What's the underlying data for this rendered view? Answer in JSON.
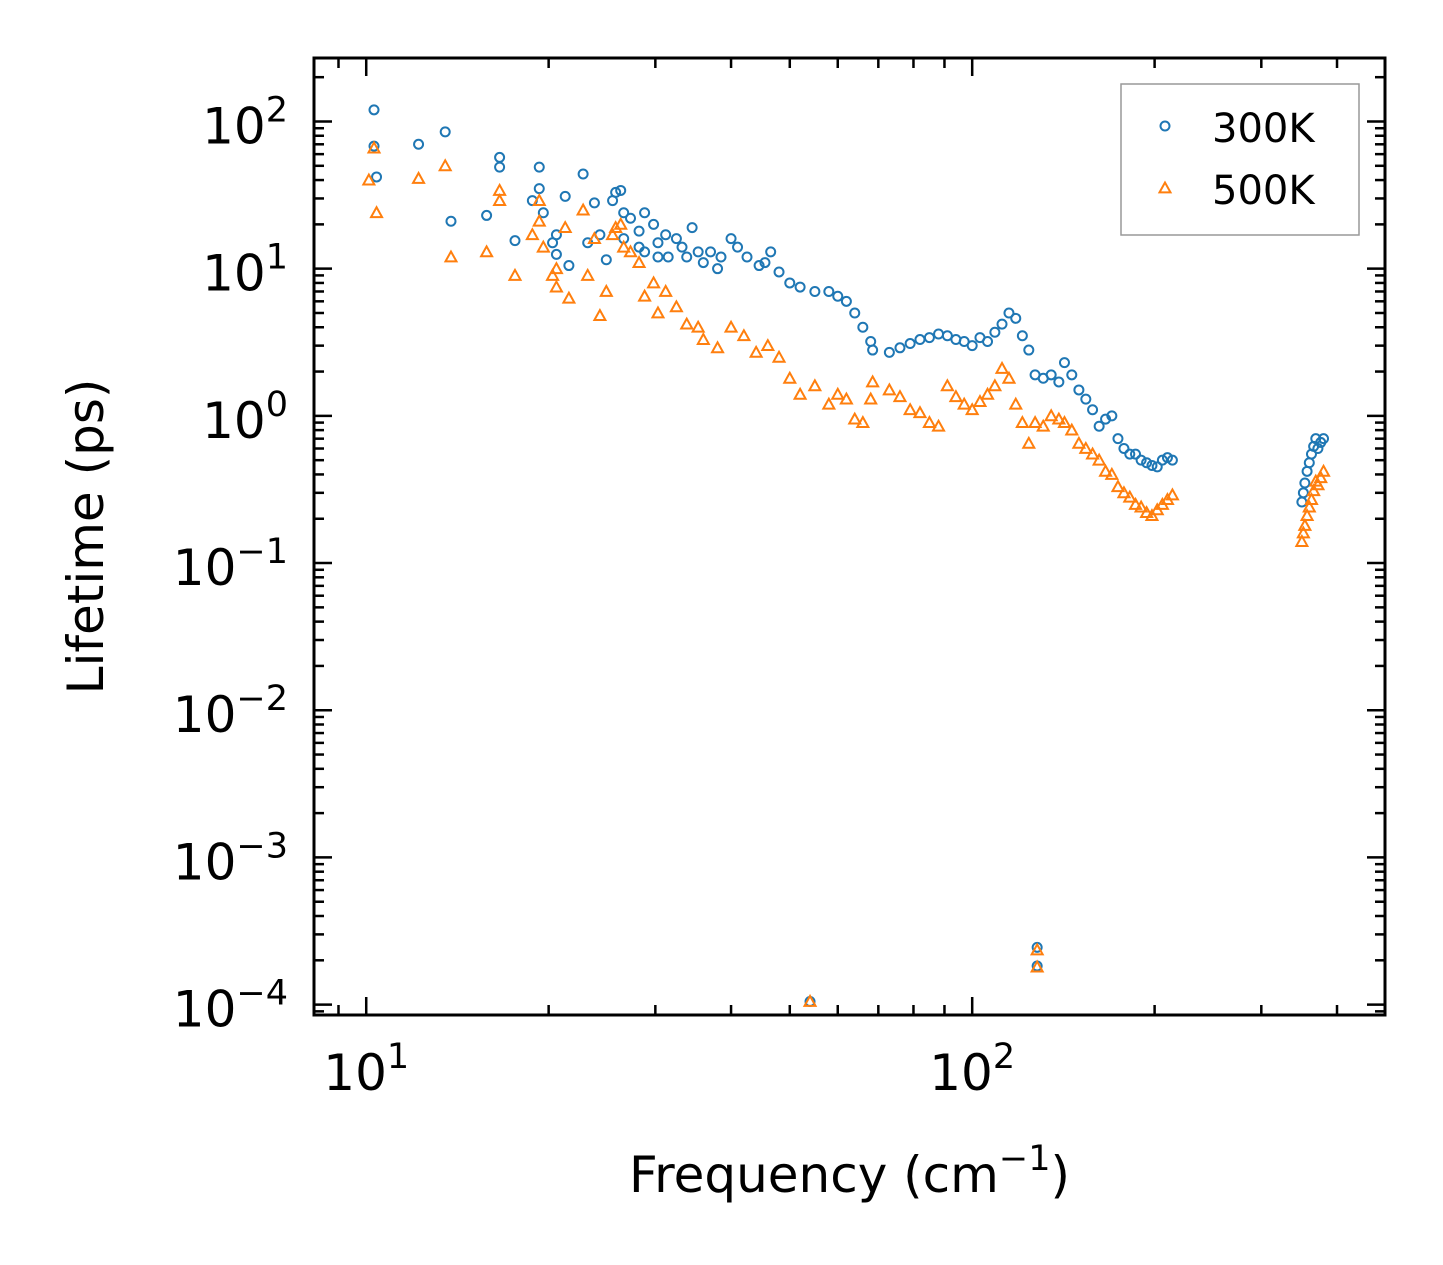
{
  "chart_data": {
    "type": "scatter",
    "title": "",
    "xlabel": "Frequency (cm",
    "xlabel_sup": "−1",
    "xlabel_suffix": ")",
    "ylabel": "Lifetime (ps)",
    "xscale": "log",
    "yscale": "log",
    "xlim": [
      8.2,
      480
    ],
    "ylim": [
      8.5e-05,
      270
    ],
    "legend_position": "top-right",
    "x_ticks": [
      {
        "base": "10",
        "exp": "1",
        "value": 10
      },
      {
        "base": "10",
        "exp": "2",
        "value": 100
      }
    ],
    "y_ticks": [
      {
        "base": "10",
        "exp": "2",
        "value": 100
      },
      {
        "base": "10",
        "exp": "1",
        "value": 10
      },
      {
        "base": "10",
        "exp": "0",
        "value": 1
      },
      {
        "base": "10",
        "exp": "−1",
        "value": 0.1
      },
      {
        "base": "10",
        "exp": "−2",
        "value": 0.01
      },
      {
        "base": "10",
        "exp": "−3",
        "value": 0.001
      },
      {
        "base": "10",
        "exp": "−4",
        "value": 0.0001
      }
    ],
    "series": [
      {
        "name": "300K",
        "marker": "circle",
        "color": "#1f77b4",
        "points": [
          [
            10.3,
            120
          ],
          [
            10.3,
            68
          ],
          [
            10.4,
            42
          ],
          [
            12.2,
            70
          ],
          [
            13.5,
            85
          ],
          [
            13.8,
            21
          ],
          [
            15.8,
            23
          ],
          [
            16.6,
            57
          ],
          [
            16.6,
            49
          ],
          [
            17.6,
            15.5
          ],
          [
            18.8,
            29
          ],
          [
            19.3,
            49
          ],
          [
            19.3,
            35
          ],
          [
            19.6,
            24
          ],
          [
            20.3,
            15
          ],
          [
            20.6,
            17
          ],
          [
            20.6,
            12.5
          ],
          [
            21.3,
            31
          ],
          [
            21.6,
            10.5
          ],
          [
            22.8,
            44
          ],
          [
            23.2,
            15
          ],
          [
            23.8,
            28
          ],
          [
            24.3,
            17
          ],
          [
            24.9,
            11.5
          ],
          [
            25.5,
            29
          ],
          [
            25.8,
            33
          ],
          [
            26.3,
            34
          ],
          [
            26.6,
            24
          ],
          [
            26.6,
            16
          ],
          [
            27.3,
            22
          ],
          [
            28.2,
            18
          ],
          [
            28.2,
            14
          ],
          [
            28.8,
            24
          ],
          [
            28.8,
            13
          ],
          [
            29.8,
            20
          ],
          [
            30.3,
            15
          ],
          [
            30.3,
            12
          ],
          [
            31.2,
            17
          ],
          [
            31.5,
            12
          ],
          [
            32.5,
            16
          ],
          [
            33.2,
            14
          ],
          [
            33.8,
            12
          ],
          [
            34.5,
            19
          ],
          [
            35.3,
            13
          ],
          [
            36,
            11
          ],
          [
            37,
            13
          ],
          [
            38,
            10
          ],
          [
            38.5,
            12
          ],
          [
            40,
            16
          ],
          [
            41,
            14
          ],
          [
            42.5,
            12
          ],
          [
            44.5,
            10.5
          ],
          [
            45.5,
            11
          ],
          [
            46.5,
            13
          ],
          [
            48,
            9.5
          ],
          [
            50,
            8
          ],
          [
            52,
            7.5
          ],
          [
            55,
            7
          ],
          [
            58,
            7
          ],
          [
            60,
            6.5
          ],
          [
            62,
            6
          ],
          [
            64,
            5
          ],
          [
            66,
            4
          ],
          [
            68,
            3.2
          ],
          [
            68.5,
            2.8
          ],
          [
            73,
            2.7
          ],
          [
            76,
            2.9
          ],
          [
            79,
            3.1
          ],
          [
            82,
            3.3
          ],
          [
            85,
            3.4
          ],
          [
            88,
            3.6
          ],
          [
            91,
            3.5
          ],
          [
            94,
            3.3
          ],
          [
            97,
            3.2
          ],
          [
            100,
            3
          ],
          [
            103,
            3.4
          ],
          [
            106,
            3.2
          ],
          [
            109,
            3.7
          ],
          [
            112,
            4.2
          ],
          [
            115,
            5
          ],
          [
            118,
            4.6
          ],
          [
            121,
            3.5
          ],
          [
            124,
            2.8
          ],
          [
            127,
            1.9
          ],
          [
            131,
            1.8
          ],
          [
            135,
            1.9
          ],
          [
            139,
            1.7
          ],
          [
            142,
            2.3
          ],
          [
            146,
            1.9
          ],
          [
            150,
            1.5
          ],
          [
            154,
            1.3
          ],
          [
            158,
            1.1
          ],
          [
            162,
            0.85
          ],
          [
            166,
            0.95
          ],
          [
            170,
            1
          ],
          [
            174,
            0.7
          ],
          [
            178,
            0.6
          ],
          [
            182,
            0.55
          ],
          [
            186,
            0.55
          ],
          [
            190,
            0.5
          ],
          [
            194,
            0.48
          ],
          [
            198,
            0.46
          ],
          [
            202,
            0.45
          ],
          [
            206,
            0.5
          ],
          [
            210,
            0.52
          ],
          [
            214,
            0.5
          ],
          [
            350,
            0.26
          ],
          [
            352,
            0.3
          ],
          [
            354,
            0.35
          ],
          [
            357,
            0.42
          ],
          [
            360,
            0.48
          ],
          [
            363,
            0.55
          ],
          [
            366,
            0.62
          ],
          [
            369,
            0.7
          ],
          [
            372,
            0.6
          ],
          [
            376,
            0.66
          ],
          [
            380,
            0.7
          ],
          [
            54,
            0.000105
          ],
          [
            128,
            0.000245
          ],
          [
            128,
            0.000183
          ]
        ]
      },
      {
        "name": "500K",
        "marker": "triangle",
        "color": "#ff7f0e",
        "points": [
          [
            10.1,
            40
          ],
          [
            10.3,
            66
          ],
          [
            10.4,
            24
          ],
          [
            12.2,
            41
          ],
          [
            13.5,
            50
          ],
          [
            13.8,
            12
          ],
          [
            15.8,
            13
          ],
          [
            16.6,
            34
          ],
          [
            16.6,
            29
          ],
          [
            17.6,
            9
          ],
          [
            18.8,
            17
          ],
          [
            19.3,
            29
          ],
          [
            19.3,
            21
          ],
          [
            19.6,
            14
          ],
          [
            20.3,
            9
          ],
          [
            20.6,
            10
          ],
          [
            20.6,
            7.5
          ],
          [
            21.3,
            19
          ],
          [
            21.6,
            6.3
          ],
          [
            22.8,
            25
          ],
          [
            23.2,
            9
          ],
          [
            23.8,
            16
          ],
          [
            24.3,
            4.8
          ],
          [
            24.9,
            7
          ],
          [
            25.5,
            17
          ],
          [
            25.8,
            19
          ],
          [
            26.3,
            20
          ],
          [
            26.6,
            14
          ],
          [
            27.3,
            13
          ],
          [
            28.2,
            11
          ],
          [
            28.8,
            6.5
          ],
          [
            29.8,
            8
          ],
          [
            30.3,
            5
          ],
          [
            31.2,
            7
          ],
          [
            32.5,
            5.5
          ],
          [
            33.8,
            4.2
          ],
          [
            35.3,
            4
          ],
          [
            36,
            3.3
          ],
          [
            38,
            2.9
          ],
          [
            40,
            4
          ],
          [
            42,
            3.5
          ],
          [
            44,
            2.7
          ],
          [
            46,
            3
          ],
          [
            48,
            2.5
          ],
          [
            50,
            1.8
          ],
          [
            52,
            1.4
          ],
          [
            55,
            1.6
          ],
          [
            58,
            1.2
          ],
          [
            60,
            1.4
          ],
          [
            62,
            1.3
          ],
          [
            64,
            0.95
          ],
          [
            66,
            0.9
          ],
          [
            68,
            1.3
          ],
          [
            68.5,
            1.7
          ],
          [
            73,
            1.5
          ],
          [
            76,
            1.35
          ],
          [
            79,
            1.1
          ],
          [
            82,
            1.05
          ],
          [
            85,
            0.9
          ],
          [
            88,
            0.85
          ],
          [
            91,
            1.6
          ],
          [
            94,
            1.35
          ],
          [
            97,
            1.2
          ],
          [
            100,
            1.1
          ],
          [
            103,
            1.25
          ],
          [
            106,
            1.4
          ],
          [
            109,
            1.6
          ],
          [
            112,
            2.1
          ],
          [
            115,
            1.8
          ],
          [
            118,
            1.2
          ],
          [
            121,
            0.9
          ],
          [
            124,
            0.65
          ],
          [
            127,
            0.9
          ],
          [
            131,
            0.85
          ],
          [
            135,
            1
          ],
          [
            139,
            0.95
          ],
          [
            142,
            0.9
          ],
          [
            146,
            0.8
          ],
          [
            150,
            0.65
          ],
          [
            154,
            0.6
          ],
          [
            158,
            0.55
          ],
          [
            162,
            0.5
          ],
          [
            166,
            0.42
          ],
          [
            170,
            0.4
          ],
          [
            174,
            0.33
          ],
          [
            178,
            0.3
          ],
          [
            182,
            0.28
          ],
          [
            186,
            0.25
          ],
          [
            190,
            0.24
          ],
          [
            194,
            0.22
          ],
          [
            198,
            0.21
          ],
          [
            202,
            0.23
          ],
          [
            206,
            0.25
          ],
          [
            210,
            0.27
          ],
          [
            214,
            0.29
          ],
          [
            350,
            0.14
          ],
          [
            352,
            0.16
          ],
          [
            354,
            0.18
          ],
          [
            357,
            0.21
          ],
          [
            360,
            0.24
          ],
          [
            363,
            0.27
          ],
          [
            366,
            0.31
          ],
          [
            369,
            0.36
          ],
          [
            372,
            0.34
          ],
          [
            376,
            0.38
          ],
          [
            380,
            0.42
          ],
          [
            54,
            0.000105
          ],
          [
            128,
            0.000235
          ],
          [
            128,
            0.00018
          ]
        ]
      }
    ]
  }
}
